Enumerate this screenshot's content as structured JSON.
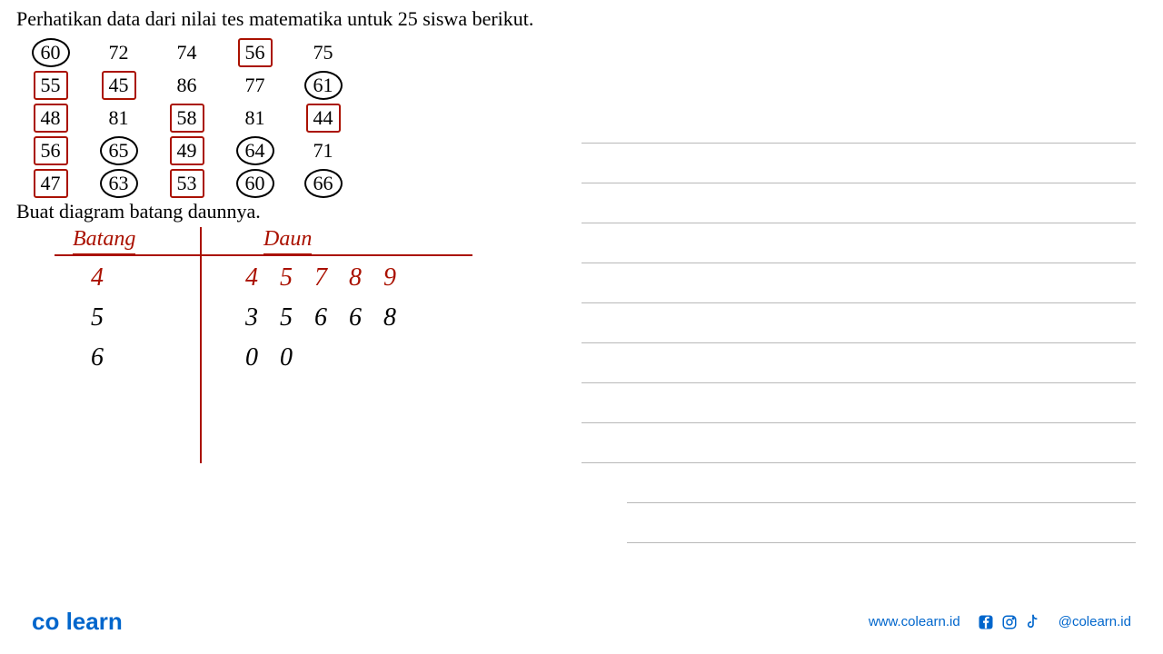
{
  "problem": {
    "title": "Perhatikan data dari nilai tes matematika untuk 25 siswa berikut.",
    "instruction": "Buat diagram batang daunnya.",
    "data_rows": [
      [
        {
          "v": "60",
          "m": "circle"
        },
        {
          "v": "72",
          "m": "none"
        },
        {
          "v": "74",
          "m": "none"
        },
        {
          "v": "56",
          "m": "box"
        },
        {
          "v": "75",
          "m": "none"
        }
      ],
      [
        {
          "v": "55",
          "m": "box"
        },
        {
          "v": "45",
          "m": "box"
        },
        {
          "v": "86",
          "m": "none"
        },
        {
          "v": "77",
          "m": "none"
        },
        {
          "v": "61",
          "m": "circle"
        }
      ],
      [
        {
          "v": "48",
          "m": "box"
        },
        {
          "v": "81",
          "m": "none"
        },
        {
          "v": "58",
          "m": "box"
        },
        {
          "v": "81",
          "m": "none"
        },
        {
          "v": "44",
          "m": "box"
        }
      ],
      [
        {
          "v": "56",
          "m": "box"
        },
        {
          "v": "65",
          "m": "circle"
        },
        {
          "v": "49",
          "m": "box"
        },
        {
          "v": "64",
          "m": "circle"
        },
        {
          "v": "71",
          "m": "none"
        }
      ],
      [
        {
          "v": "47",
          "m": "box"
        },
        {
          "v": "63",
          "m": "circle"
        },
        {
          "v": "53",
          "m": "box"
        },
        {
          "v": "60",
          "m": "circle"
        },
        {
          "v": "66",
          "m": "circle"
        }
      ]
    ]
  },
  "stemleaf": {
    "header_stem": "Batang",
    "header_leaf": "Daun",
    "stems": [
      {
        "v": "4",
        "color": "red"
      },
      {
        "v": "5",
        "color": "black"
      },
      {
        "v": "6",
        "color": "black"
      }
    ],
    "leaves": [
      [
        {
          "v": "4",
          "c": "red"
        },
        {
          "v": "5",
          "c": "red"
        },
        {
          "v": "7",
          "c": "red"
        },
        {
          "v": "8",
          "c": "red"
        },
        {
          "v": "9",
          "c": "red"
        }
      ],
      [
        {
          "v": "3",
          "c": "black"
        },
        {
          "v": "5",
          "c": "black"
        },
        {
          "v": "6",
          "c": "black"
        },
        {
          "v": "6",
          "c": "black"
        },
        {
          "v": "8",
          "c": "black"
        }
      ],
      [
        {
          "v": "0",
          "c": "black"
        },
        {
          "v": "0",
          "c": "black"
        }
      ]
    ]
  },
  "footer": {
    "logo_part1": "co",
    "logo_part2": "learn",
    "website": "www.colearn.id",
    "handle": "@colearn.id"
  },
  "colors": {
    "mark_red": "#aa1100",
    "brand_blue": "#0066cc",
    "brand_green": "#2a8a2a",
    "rule_gray": "#b8b8b8"
  }
}
